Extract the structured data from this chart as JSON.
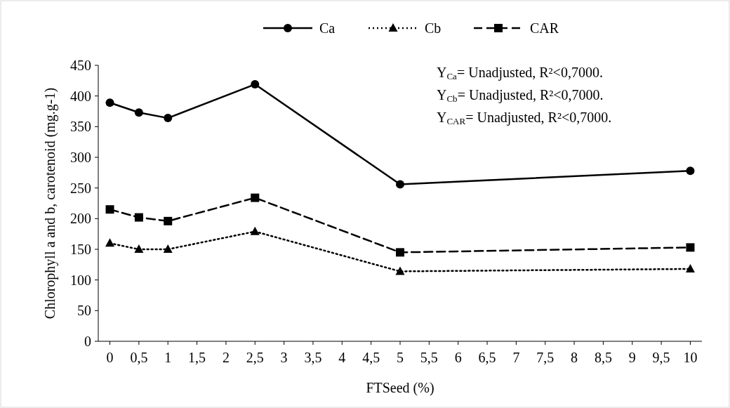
{
  "chart_data": {
    "type": "line",
    "xlabel": "FTSeed (%)",
    "ylabel": "Chlorophyll a and b, carotenoid (mg.g-1)",
    "x": [
      0,
      0.5,
      1,
      2.5,
      5,
      10
    ],
    "series": [
      {
        "name": "Ca",
        "color": "#000000",
        "values": [
          389,
          373,
          364,
          419,
          256,
          278
        ],
        "marker": "circle",
        "line_style": "solid"
      },
      {
        "name": "Cb",
        "color": "#000000",
        "values": [
          160,
          150,
          150,
          179,
          114,
          118
        ],
        "marker": "triangle",
        "line_style": "dotted"
      },
      {
        "name": "CAR",
        "color": "#000000",
        "values": [
          215,
          202,
          196,
          234,
          145,
          153
        ],
        "marker": "square",
        "line_style": "dashed"
      }
    ],
    "xlim": [
      -0.2,
      10.2
    ],
    "xticks": [
      0,
      {
        "value": 0.5,
        "label": "0,5"
      },
      1,
      {
        "value": 1.5,
        "label": "1,5"
      },
      2,
      {
        "value": 2.5,
        "label": "2,5"
      },
      3,
      {
        "value": 3.5,
        "label": "3,5"
      },
      4,
      {
        "value": 4.5,
        "label": "4,5"
      },
      5,
      {
        "value": 5.5,
        "label": "5,5"
      },
      6,
      {
        "value": 6.5,
        "label": "6,5"
      },
      7,
      {
        "value": 7.5,
        "label": "7,5"
      },
      8,
      {
        "value": 8.5,
        "label": "8,5"
      },
      9,
      {
        "value": 9.5,
        "label": "9,5"
      },
      10
    ],
    "ylim": [
      0,
      450
    ],
    "yticks": [
      0,
      50,
      100,
      150,
      200,
      250,
      300,
      350,
      400,
      450
    ],
    "grid": false,
    "legend": "top",
    "annotations": [
      "Y$_{Ca}$= Unadjusted, R²<0,7000.",
      "Y$_{Cb}$= Unadjusted, R²<0,7000.",
      "Y$_{CAR}$= Unadjusted, R²<0,7000."
    ]
  }
}
